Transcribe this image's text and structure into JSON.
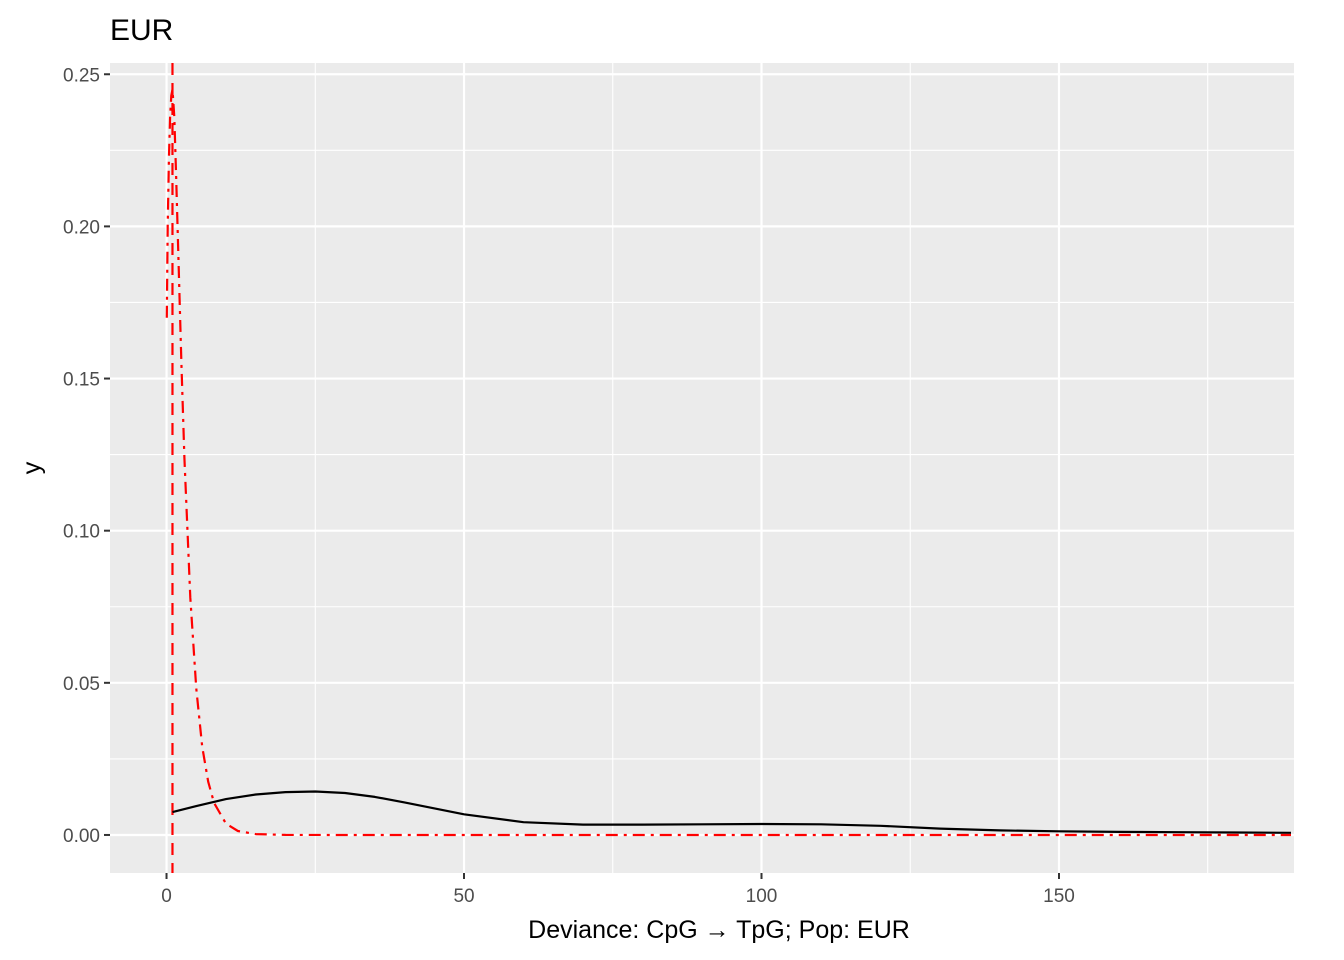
{
  "chart_data": {
    "type": "line",
    "title": "EUR",
    "xlabel": "Deviance: CpG → TpG; Pop: EUR",
    "ylabel": "y",
    "xlim": [
      -9.5,
      189.5
    ],
    "ylim": [
      -0.0125,
      0.2537
    ],
    "x_ticks": [
      0,
      50,
      100,
      150
    ],
    "x_tick_labels": [
      "0",
      "50",
      "100",
      "150"
    ],
    "y_ticks": [
      0.0,
      0.05,
      0.1,
      0.15,
      0.2,
      0.25
    ],
    "y_tick_labels": [
      "0.00",
      "0.05",
      "0.10",
      "0.15",
      "0.20",
      "0.25"
    ],
    "grid": true,
    "legend": "none",
    "background": "#ebebeb",
    "series": [
      {
        "style": "solid",
        "color": "#000000",
        "x": [
          1,
          5,
          10,
          15,
          20,
          25,
          30,
          35,
          40,
          50,
          60,
          70,
          80,
          90,
          100,
          110,
          120,
          130,
          140,
          150,
          160,
          170,
          180,
          189
        ],
        "y": [
          0.0075,
          0.0095,
          0.0118,
          0.0133,
          0.0141,
          0.0143,
          0.0138,
          0.0125,
          0.0107,
          0.0068,
          0.0042,
          0.0034,
          0.0034,
          0.0035,
          0.0036,
          0.0035,
          0.003,
          0.0021,
          0.0015,
          0.0012,
          0.001,
          0.0009,
          0.0008,
          0.0007
        ]
      },
      {
        "style": "dotdash",
        "color": "#ff0000",
        "x": [
          0.05,
          0.2,
          0.4,
          0.6,
          0.8,
          1.0,
          1.3,
          1.6,
          2.0,
          2.5,
          3.0,
          4.0,
          5.0,
          6.0,
          7.0,
          8.0,
          10.0,
          12.0,
          15.0,
          20.0,
          30.0,
          50.0,
          100.0,
          150.0,
          189.0
        ],
        "y": [
          0.17,
          0.2,
          0.222,
          0.236,
          0.243,
          0.245,
          0.236,
          0.218,
          0.19,
          0.155,
          0.124,
          0.078,
          0.048,
          0.029,
          0.0175,
          0.0105,
          0.0037,
          0.0013,
          0.0003,
          3e-05,
          0.0,
          0.0,
          0.0,
          0.0,
          0.0
        ]
      }
    ],
    "vline": {
      "x": 1,
      "style": "dashed",
      "color": "#ff0000"
    }
  }
}
